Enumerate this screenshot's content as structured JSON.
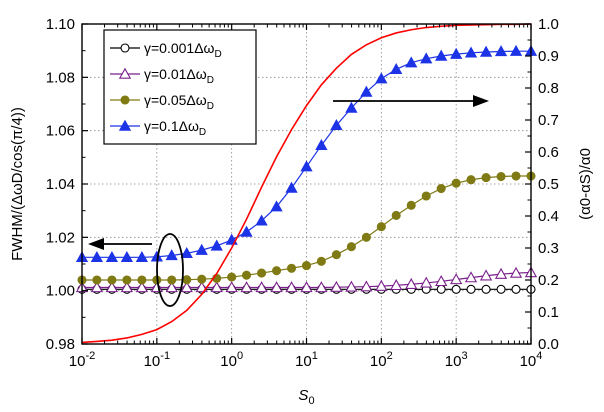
{
  "chart_data": {
    "type": "line",
    "xlabel": "S",
    "xlabel_sub": "0",
    "ylabel_left": "FWHM/(ΔωD/cos(π/4))",
    "ylabel_right": "(α0-αS)/α0",
    "x_scale": "log",
    "xlim": [
      0.01,
      10000
    ],
    "ylim_left": [
      0.98,
      1.1
    ],
    "ylim_right": [
      0.0,
      1.0
    ],
    "grid": true,
    "legend_position": "top-left",
    "x_ticks": [
      {
        "base": "10",
        "exp": "-2"
      },
      {
        "base": "10",
        "exp": "-1"
      },
      {
        "base": "10",
        "exp": "0"
      },
      {
        "base": "10",
        "exp": "1"
      },
      {
        "base": "10",
        "exp": "2"
      },
      {
        "base": "10",
        "exp": "3"
      },
      {
        "base": "10",
        "exp": "4"
      }
    ],
    "y_ticks_left": [
      "0.98",
      "1.00",
      "1.02",
      "1.04",
      "1.06",
      "1.08",
      "1.10"
    ],
    "y_ticks_right": [
      "0.0",
      "0.1",
      "0.2",
      "0.3",
      "0.4",
      "0.5",
      "0.6",
      "0.7",
      "0.8",
      "0.9",
      "1.0"
    ],
    "series": [
      {
        "name": "γ=0.001ΔωD",
        "axis": "left",
        "color": "#000000",
        "marker": "circle-open",
        "x": [
          0.01,
          0.0158,
          0.0251,
          0.0398,
          0.0631,
          0.1,
          0.158,
          0.251,
          0.398,
          0.631,
          1,
          1.58,
          2.51,
          3.98,
          6.31,
          10,
          15.8,
          25.1,
          39.8,
          63.1,
          100,
          158,
          251,
          398,
          631,
          1000,
          1580,
          2510,
          3980,
          6310,
          10000
        ],
        "y": [
          1.0005,
          1.0005,
          1.0005,
          1.0005,
          1.0005,
          1.0005,
          1.0005,
          1.0005,
          1.0005,
          1.0005,
          1.0005,
          1.0005,
          1.0005,
          1.0005,
          1.0005,
          1.0005,
          1.0005,
          1.0005,
          1.0005,
          1.0005,
          1.0005,
          1.0005,
          1.0005,
          1.0005,
          1.0005,
          1.0005,
          1.0005,
          1.0005,
          1.0005,
          1.0005,
          1.0005
        ]
      },
      {
        "name": "γ=0.01ΔωD",
        "axis": "left",
        "color": "#7a1f8c",
        "marker": "triangle-open",
        "x": [
          0.01,
          0.0158,
          0.0251,
          0.0398,
          0.0631,
          0.1,
          0.158,
          0.251,
          0.398,
          0.631,
          1,
          1.58,
          2.51,
          3.98,
          6.31,
          10,
          15.8,
          25.1,
          39.8,
          63.1,
          100,
          158,
          251,
          398,
          631,
          1000,
          1580,
          2510,
          3980,
          6310,
          10000
        ],
        "y": [
          1.0012,
          1.0012,
          1.0012,
          1.0012,
          1.0012,
          1.0012,
          1.0012,
          1.0012,
          1.0012,
          1.0012,
          1.0012,
          1.0012,
          1.0012,
          1.0012,
          1.0012,
          1.0012,
          1.0012,
          1.0013,
          1.0014,
          1.0015,
          1.0017,
          1.002,
          1.0024,
          1.0029,
          1.0035,
          1.0042,
          1.0049,
          1.0056,
          1.0062,
          1.0066,
          1.0068
        ]
      },
      {
        "name": "γ=0.05ΔωD",
        "axis": "left",
        "color": "#7f7a14",
        "marker": "circle-filled",
        "x": [
          0.01,
          0.0158,
          0.0251,
          0.0398,
          0.0631,
          0.1,
          0.158,
          0.251,
          0.398,
          0.631,
          1,
          1.58,
          2.51,
          3.98,
          6.31,
          10,
          15.8,
          25.1,
          39.8,
          63.1,
          100,
          158,
          251,
          398,
          631,
          1000,
          1580,
          2510,
          3980,
          6310,
          10000
        ],
        "y": [
          1.004,
          1.004,
          1.004,
          1.004,
          1.004,
          1.004,
          1.004,
          1.0041,
          1.0043,
          1.0046,
          1.0051,
          1.0058,
          1.0066,
          1.0075,
          1.0084,
          1.0094,
          1.011,
          1.0135,
          1.0165,
          1.02,
          1.024,
          1.0282,
          1.032,
          1.0355,
          1.0383,
          1.0403,
          1.0416,
          1.0424,
          1.0428,
          1.043,
          1.043
        ]
      },
      {
        "name": "γ=0.1ΔωD",
        "axis": "left",
        "color": "#1c33e6",
        "marker": "triangle-filled",
        "x": [
          0.01,
          0.0158,
          0.0251,
          0.0398,
          0.0631,
          0.1,
          0.158,
          0.251,
          0.398,
          0.631,
          1,
          1.58,
          2.51,
          3.98,
          6.31,
          10,
          15.8,
          25.1,
          39.8,
          63.1,
          100,
          158,
          251,
          398,
          631,
          1000,
          1580,
          2510,
          3980,
          6310,
          10000
        ],
        "y": [
          1.0125,
          1.0125,
          1.0125,
          1.0125,
          1.0125,
          1.0127,
          1.0132,
          1.014,
          1.0152,
          1.0168,
          1.019,
          1.022,
          1.0262,
          1.0315,
          1.0385,
          1.0465,
          1.0545,
          1.062,
          1.0685,
          1.0745,
          1.0795,
          1.083,
          1.0855,
          1.087,
          1.088,
          1.0887,
          1.0892,
          1.0895,
          1.0897,
          1.0898,
          1.0898
        ]
      },
      {
        "name": "",
        "axis": "right",
        "color": "#ff0000",
        "marker": "none",
        "x": [
          0.01,
          0.0158,
          0.0251,
          0.0398,
          0.0631,
          0.1,
          0.158,
          0.251,
          0.398,
          0.631,
          1,
          1.58,
          2.51,
          3.98,
          6.31,
          10,
          15.8,
          25.1,
          39.8,
          63.1,
          100,
          158,
          251,
          398,
          631,
          1000,
          1580,
          2510,
          3980,
          6310,
          10000
        ],
        "y": [
          0.005,
          0.008,
          0.012,
          0.019,
          0.03,
          0.045,
          0.07,
          0.105,
          0.155,
          0.22,
          0.3,
          0.39,
          0.49,
          0.585,
          0.67,
          0.745,
          0.81,
          0.862,
          0.905,
          0.935,
          0.957,
          0.972,
          0.982,
          0.989,
          0.993,
          0.996,
          0.997,
          0.998,
          0.999,
          0.999,
          1.0
        ]
      }
    ]
  }
}
